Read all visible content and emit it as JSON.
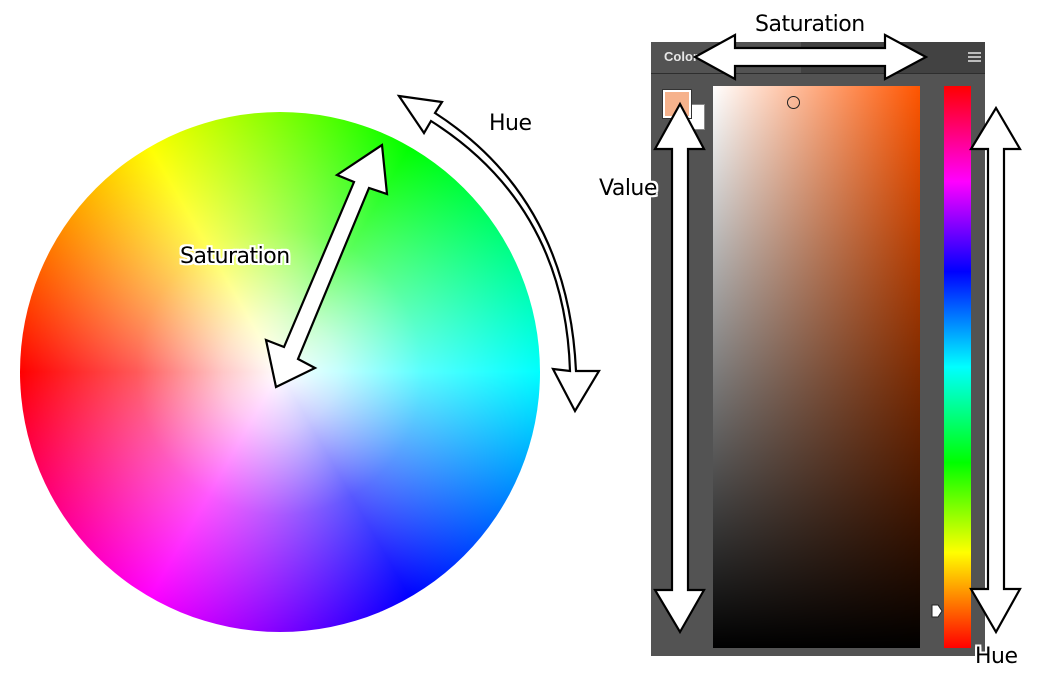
{
  "wheel": {
    "labels": {
      "saturation": "Saturation",
      "hue": "Hue"
    },
    "hue_order": [
      "red",
      "yellow",
      "green",
      "cyan",
      "blue",
      "magenta"
    ]
  },
  "panel": {
    "tab_title": "Color",
    "menu_icon": "hamburger-menu-icon",
    "foreground_color": "#f6b28c",
    "background_color": "#ffffff",
    "selected_hue_color": "#ff5500",
    "hue_slider_level": 0.05,
    "panel_color": "#535353"
  },
  "annotations": {
    "saturation": "Saturation",
    "value": "Value",
    "hue": "Hue"
  }
}
